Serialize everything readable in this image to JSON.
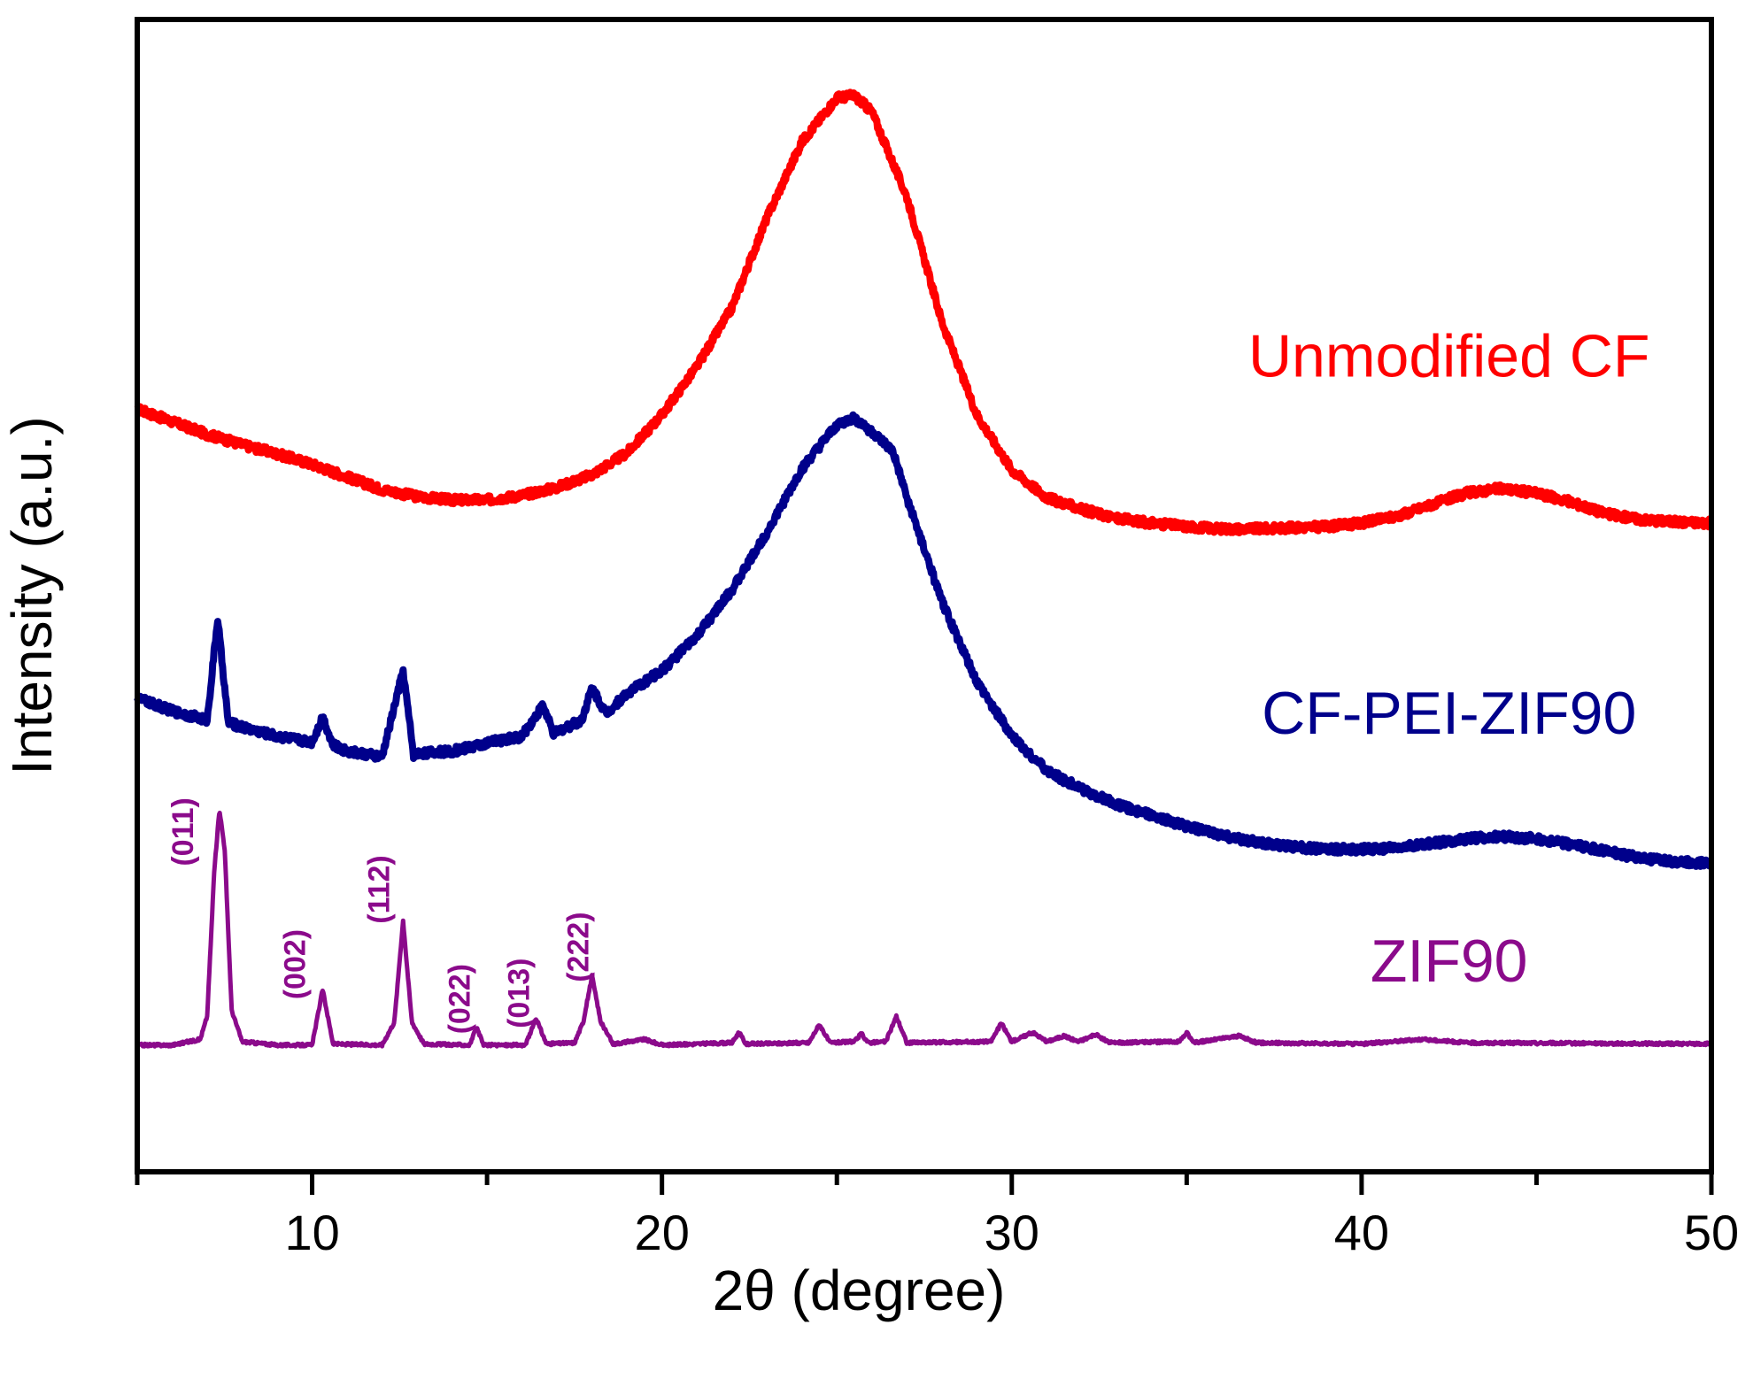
{
  "chart_data": {
    "type": "line",
    "title": "",
    "xlabel": "2θ (degree)",
    "ylabel": "Intensity (a.u.)",
    "xlim": [
      5,
      50
    ],
    "ylim": [
      0,
      100
    ],
    "x_ticks": [
      10,
      20,
      30,
      40,
      50
    ],
    "x_tick_labels": [
      "10",
      "20",
      "30",
      "40",
      "50"
    ],
    "y_tick_labels": "none",
    "grid": false,
    "legend": "labels placed next to each curve on the right",
    "series": [
      {
        "name": "Unmodified CF",
        "color": "#ff0000",
        "noise": 0.35,
        "points": [
          [
            5,
            66.2
          ],
          [
            6,
            65.1
          ],
          [
            7,
            64.0
          ],
          [
            8,
            63.1
          ],
          [
            9,
            62.3
          ],
          [
            10,
            61.4
          ],
          [
            11,
            60.3
          ],
          [
            12,
            59.2
          ],
          [
            13,
            58.6
          ],
          [
            14,
            58.3
          ],
          [
            15,
            58.3
          ],
          [
            16,
            58.7
          ],
          [
            17,
            59.4
          ],
          [
            18,
            60.5
          ],
          [
            19,
            62.4
          ],
          [
            20,
            65.7
          ],
          [
            21,
            69.9
          ],
          [
            22,
            75.0
          ],
          [
            23,
            82.8
          ],
          [
            24,
            89.4
          ],
          [
            25,
            93.2
          ],
          [
            25.5,
            93.4
          ],
          [
            26,
            92.0
          ],
          [
            27,
            84.6
          ],
          [
            28,
            73.8
          ],
          [
            29,
            65.7
          ],
          [
            30,
            60.9
          ],
          [
            31,
            58.5
          ],
          [
            32,
            57.5
          ],
          [
            33,
            56.7
          ],
          [
            34,
            56.3
          ],
          [
            35,
            56.0
          ],
          [
            36,
            55.8
          ],
          [
            37,
            55.8
          ],
          [
            38,
            55.9
          ],
          [
            39,
            56.0
          ],
          [
            40,
            56.3
          ],
          [
            41,
            56.9
          ],
          [
            42,
            57.9
          ],
          [
            43,
            58.9
          ],
          [
            44,
            59.3
          ],
          [
            45,
            58.9
          ],
          [
            46,
            58.1
          ],
          [
            47,
            57.1
          ],
          [
            48,
            56.6
          ],
          [
            49,
            56.4
          ],
          [
            50,
            56.3
          ]
        ]
      },
      {
        "name": "CF-PEI-ZIF90",
        "color": "#00008b",
        "noise": 0.35,
        "points": [
          [
            5,
            41.1
          ],
          [
            6,
            40.0
          ],
          [
            7,
            39.2
          ],
          [
            7.3,
            48.0
          ],
          [
            7.6,
            39.0
          ],
          [
            8,
            38.6
          ],
          [
            9,
            37.8
          ],
          [
            10,
            37.3
          ],
          [
            10.3,
            39.5
          ],
          [
            10.6,
            37.0
          ],
          [
            11,
            36.5
          ],
          [
            12,
            36.0
          ],
          [
            12.6,
            43.5
          ],
          [
            12.9,
            36.2
          ],
          [
            13,
            36.3
          ],
          [
            14,
            36.5
          ],
          [
            15,
            37.2
          ],
          [
            16,
            37.8
          ],
          [
            16.6,
            40.5
          ],
          [
            16.9,
            38.0
          ],
          [
            17,
            38.2
          ],
          [
            17.7,
            39.2
          ],
          [
            18,
            42.0
          ],
          [
            18.4,
            39.8
          ],
          [
            19,
            41.5
          ],
          [
            20,
            43.5
          ],
          [
            21,
            46.5
          ],
          [
            22,
            50.5
          ],
          [
            23,
            55.5
          ],
          [
            24,
            61.0
          ],
          [
            25,
            64.8
          ],
          [
            25.5,
            65.4
          ],
          [
            26,
            64.2
          ],
          [
            26.6,
            62.5
          ],
          [
            27,
            58.5
          ],
          [
            28,
            49.5
          ],
          [
            29,
            42.5
          ],
          [
            30,
            37.8
          ],
          [
            31,
            34.8
          ],
          [
            32,
            33.2
          ],
          [
            33,
            31.9
          ],
          [
            34,
            30.9
          ],
          [
            35,
            30.0
          ],
          [
            36,
            29.2
          ],
          [
            37,
            28.6
          ],
          [
            38,
            28.2
          ],
          [
            39,
            28.0
          ],
          [
            40,
            28.0
          ],
          [
            41,
            28.1
          ],
          [
            42,
            28.5
          ],
          [
            43,
            28.9
          ],
          [
            44,
            29.1
          ],
          [
            45,
            28.9
          ],
          [
            46,
            28.4
          ],
          [
            47,
            27.8
          ],
          [
            48,
            27.2
          ],
          [
            49,
            26.9
          ],
          [
            50,
            26.8
          ]
        ]
      },
      {
        "name": "ZIF90",
        "color": "#8b0a8b",
        "noise": 0.12,
        "points": [
          [
            5,
            11.0
          ],
          [
            6,
            11.0
          ],
          [
            6.8,
            11.5
          ],
          [
            7.0,
            13.5
          ],
          [
            7.2,
            26.0
          ],
          [
            7.35,
            31.5
          ],
          [
            7.5,
            28.0
          ],
          [
            7.7,
            14.0
          ],
          [
            8.0,
            11.3
          ],
          [
            9,
            11.0
          ],
          [
            10.0,
            11.0
          ],
          [
            10.3,
            15.8
          ],
          [
            10.6,
            11.1
          ],
          [
            12.0,
            11.0
          ],
          [
            12.35,
            13.0
          ],
          [
            12.6,
            21.8
          ],
          [
            12.85,
            13.0
          ],
          [
            13.2,
            11.1
          ],
          [
            14.5,
            11.0
          ],
          [
            14.7,
            12.5
          ],
          [
            14.9,
            11.0
          ],
          [
            16.1,
            11.0
          ],
          [
            16.4,
            13.3
          ],
          [
            16.7,
            11.1
          ],
          [
            17.5,
            11.2
          ],
          [
            17.75,
            13.0
          ],
          [
            18.0,
            17.0
          ],
          [
            18.25,
            13.0
          ],
          [
            18.6,
            11.1
          ],
          [
            19.5,
            11.5
          ],
          [
            20,
            11.0
          ],
          [
            22,
            11.2
          ],
          [
            22.2,
            12.1
          ],
          [
            22.4,
            11.1
          ],
          [
            24.2,
            11.2
          ],
          [
            24.5,
            12.8
          ],
          [
            24.8,
            11.2
          ],
          [
            25.5,
            11.3
          ],
          [
            25.7,
            12.0
          ],
          [
            25.9,
            11.2
          ],
          [
            26.4,
            11.3
          ],
          [
            26.7,
            13.5
          ],
          [
            27.0,
            11.2
          ],
          [
            29.4,
            11.3
          ],
          [
            29.7,
            12.9
          ],
          [
            30.0,
            11.3
          ],
          [
            30.6,
            12.1
          ],
          [
            31.0,
            11.3
          ],
          [
            31.5,
            11.8
          ],
          [
            31.9,
            11.3
          ],
          [
            32.4,
            11.9
          ],
          [
            32.8,
            11.2
          ],
          [
            34.8,
            11.3
          ],
          [
            35.0,
            12.1
          ],
          [
            35.2,
            11.2
          ],
          [
            36.5,
            11.8
          ],
          [
            37,
            11.2
          ],
          [
            40,
            11.1
          ],
          [
            41.7,
            11.5
          ],
          [
            43,
            11.2
          ],
          [
            50,
            11.1
          ]
        ]
      }
    ],
    "annotations": [
      {
        "text": "(011)",
        "x": 6.6,
        "y": 29.5,
        "color": "#8b0a8b"
      },
      {
        "text": "(002)",
        "x": 9.8,
        "y": 18.0,
        "color": "#8b0a8b"
      },
      {
        "text": "(112)",
        "x": 12.2,
        "y": 24.5,
        "color": "#8b0a8b"
      },
      {
        "text": "(022)",
        "x": 14.5,
        "y": 15.0,
        "color": "#8b0a8b"
      },
      {
        "text": "(013)",
        "x": 16.2,
        "y": 15.5,
        "color": "#8b0a8b"
      },
      {
        "text": "(222)",
        "x": 17.9,
        "y": 19.5,
        "color": "#8b0a8b"
      }
    ],
    "labels": [
      {
        "text": "Unmodified CF",
        "x": 42.5,
        "y": 69.0,
        "color": "#ff0000"
      },
      {
        "text": "CF-PEI-ZIF90",
        "x": 42.5,
        "y": 38.0,
        "color": "#00008b"
      },
      {
        "text": "ZIF90",
        "x": 42.5,
        "y": 16.5,
        "color": "#8b0a8b"
      }
    ]
  }
}
